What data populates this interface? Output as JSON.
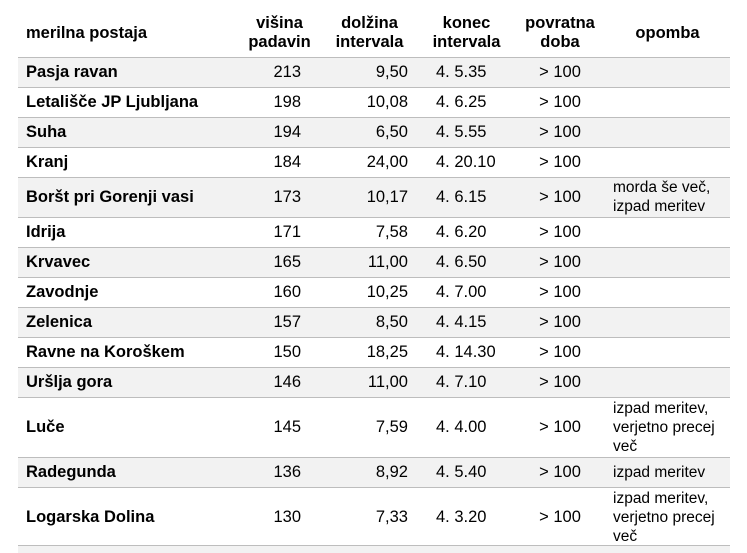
{
  "table": {
    "headers": {
      "station": "merilna postaja",
      "precip_1": "višina",
      "precip_2": "padavin",
      "duration_1": "dolžina",
      "duration_2": "intervala",
      "end_1": "konec",
      "end_2": "intervala",
      "return_1": "povratna",
      "return_2": "doba",
      "note": "opomba"
    },
    "rows": [
      {
        "station": "Pasja ravan",
        "precip": "213",
        "duration": "9,50",
        "end": "4. 5.35",
        "return_period": "> 100",
        "note": ""
      },
      {
        "station": "Letališče JP Ljubljana",
        "precip": "198",
        "duration": "10,08",
        "end": "4. 6.25",
        "return_period": "> 100",
        "note": ""
      },
      {
        "station": "Suha",
        "precip": "194",
        "duration": "6,50",
        "end": "4. 5.55",
        "return_period": "> 100",
        "note": ""
      },
      {
        "station": "Kranj",
        "precip": "184",
        "duration": "24,00",
        "end": "4. 20.10",
        "return_period": "> 100",
        "note": ""
      },
      {
        "station": "Boršt pri Gorenji vasi",
        "precip": "173",
        "duration": "10,17",
        "end": "4. 6.15",
        "return_period": "> 100",
        "note": "morda še več, izpad meritev"
      },
      {
        "station": "Idrija",
        "precip": "171",
        "duration": "7,58",
        "end": "4. 6.20",
        "return_period": "> 100",
        "note": ""
      },
      {
        "station": "Krvavec",
        "precip": "165",
        "duration": "11,00",
        "end": "4. 6.50",
        "return_period": "> 100",
        "note": ""
      },
      {
        "station": "Zavodnje",
        "precip": "160",
        "duration": "10,25",
        "end": "4. 7.00",
        "return_period": "> 100",
        "note": ""
      },
      {
        "station": "Zelenica",
        "precip": "157",
        "duration": "8,50",
        "end": "4. 4.15",
        "return_period": "> 100",
        "note": ""
      },
      {
        "station": "Ravne na Koroškem",
        "precip": "150",
        "duration": "18,25",
        "end": "4. 14.30",
        "return_period": "> 100",
        "note": ""
      },
      {
        "station": "Uršlja gora",
        "precip": "146",
        "duration": "11,00",
        "end": "4. 7.10",
        "return_period": "> 100",
        "note": ""
      },
      {
        "station": "Luče",
        "precip": "145",
        "duration": "7,59",
        "end": "4. 4.00",
        "return_period": "> 100",
        "note": "izpad meritev, verjetno precej več"
      },
      {
        "station": "Radegunda",
        "precip": "136",
        "duration": "8,92",
        "end": "4. 5.40",
        "return_period": "> 100",
        "note": "izpad meritev"
      },
      {
        "station": "Logarska Dolina",
        "precip": "130",
        "duration": "7,33",
        "end": "4. 3.20",
        "return_period": "> 100",
        "note": "izpad meritev, verjetno precej več"
      }
    ]
  }
}
